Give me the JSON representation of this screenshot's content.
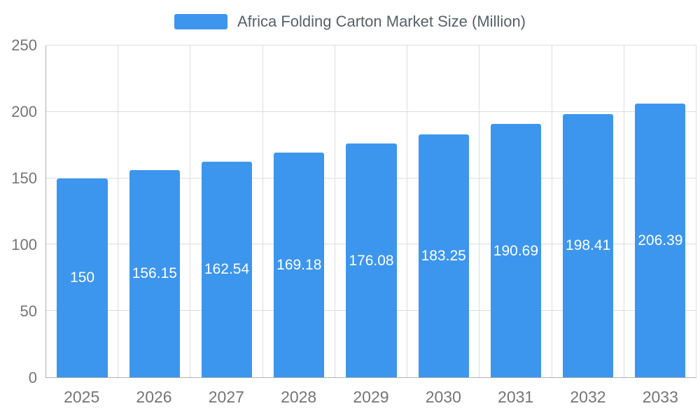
{
  "legend": {
    "title": "Africa Folding Carton Market Size (Million)"
  },
  "chart_data": {
    "type": "bar",
    "title": "Africa Folding Carton Market Size (Million)",
    "categories": [
      "2025",
      "2026",
      "2027",
      "2028",
      "2029",
      "2030",
      "2031",
      "2032",
      "2033"
    ],
    "values": [
      150,
      156.15,
      162.54,
      169.18,
      176.08,
      183.25,
      190.69,
      198.41,
      206.39
    ],
    "xlabel": "",
    "ylabel": "",
    "ylim": [
      0,
      250
    ],
    "yticks": [
      0,
      50,
      100,
      150,
      200,
      250
    ],
    "grid": true,
    "legend_position": "top",
    "bar_color": "#3d96ed",
    "bar_label_color": "#ffffff",
    "grid_color": "#dddddd",
    "axis_color": "#b0b0b0",
    "tick_color": "#757575",
    "title_color": "#57606a",
    "background_color": "#ffffff"
  }
}
